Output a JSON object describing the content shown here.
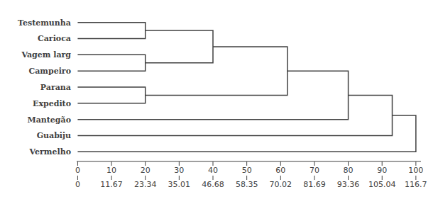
{
  "chart_data": {
    "type": "dendrogram",
    "tree": {
      "height": 100,
      "children": [
        {
          "height": 93,
          "children": [
            {
              "height": 80,
              "children": [
                {
                  "height": 62,
                  "children": [
                    {
                      "height": 40,
                      "children": [
                        {
                          "height": 20,
                          "children": [
                            "Testemunha",
                            "Carioca"
                          ]
                        },
                        {
                          "height": 20,
                          "children": [
                            "Vagem larg",
                            "Campeiro"
                          ]
                        }
                      ]
                    },
                    {
                      "height": 20,
                      "children": [
                        "Parana",
                        "Expedito"
                      ]
                    }
                  ]
                },
                "Mantegão"
              ]
            },
            "Guabiju"
          ]
        },
        "Vermelho"
      ]
    },
    "xlim": [
      -0.3,
      101.5
    ],
    "xticks": [
      0,
      10,
      20,
      30,
      40,
      50,
      60,
      70,
      80,
      90,
      100
    ],
    "x2lim": [
      -0.3501,
      118.4505
    ],
    "x2ticks": [
      0.0,
      11.67,
      23.34,
      35.01,
      46.68,
      58.35,
      70.02,
      81.69,
      93.36,
      105.04,
      116.7
    ],
    "color": "#404040"
  }
}
